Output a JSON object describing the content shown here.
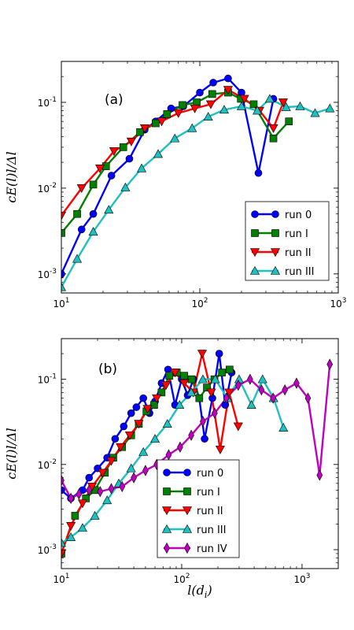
{
  "chart_data": [
    {
      "type": "line",
      "panel_label": "(a)",
      "xscale": "log",
      "yscale": "log",
      "xlim": [
        10,
        1000
      ],
      "ylim": [
        0.0006,
        0.3
      ],
      "x_ticks": [
        {
          "v": 10,
          "base": "10",
          "exp": "1"
        },
        {
          "v": 100,
          "base": "10",
          "exp": "2"
        },
        {
          "v": 1000,
          "base": "10",
          "exp": "3"
        }
      ],
      "y_ticks": [
        {
          "v": 0.001,
          "base": "10",
          "exp": "-3"
        },
        {
          "v": 0.01,
          "base": "10",
          "exp": "-2"
        },
        {
          "v": 0.1,
          "base": "10",
          "exp": "-1"
        }
      ],
      "ylabel": "cE(l)l/Δl",
      "xlabel": "",
      "legend_position": "lower-right",
      "series": [
        {
          "name": "run 0",
          "color": "#0000ff",
          "marker": "circle",
          "x": [
            10,
            14,
            17,
            23,
            31,
            40,
            48,
            62,
            76,
            100,
            125,
            160,
            200,
            265,
            340
          ],
          "y": [
            0.001,
            0.0033,
            0.005,
            0.014,
            0.022,
            0.048,
            0.06,
            0.085,
            0.09,
            0.13,
            0.17,
            0.19,
            0.13,
            0.015,
            0.11
          ]
        },
        {
          "name": "run I",
          "color": "#008000",
          "marker": "square",
          "x": [
            10,
            13,
            17,
            21,
            28,
            37,
            48,
            58,
            75,
            95,
            123,
            160,
            198,
            245,
            340,
            440
          ],
          "y": [
            0.003,
            0.005,
            0.011,
            0.018,
            0.03,
            0.045,
            0.057,
            0.073,
            0.093,
            0.1,
            0.125,
            0.13,
            0.11,
            0.095,
            0.038,
            0.06
          ]
        },
        {
          "name": "run II",
          "color": "#ff0000",
          "marker": "triangle-down",
          "x": [
            10,
            14,
            19,
            24,
            32,
            40,
            53,
            70,
            92,
            120,
            160,
            210,
            270,
            340,
            400
          ],
          "y": [
            0.0048,
            0.01,
            0.017,
            0.027,
            0.035,
            0.05,
            0.06,
            0.075,
            0.085,
            0.095,
            0.14,
            0.11,
            0.08,
            0.05,
            0.1
          ]
        },
        {
          "name": "run III",
          "color": "#20c0c0",
          "marker": "triangle-up",
          "x": [
            10,
            13,
            17,
            22,
            29,
            38,
            50,
            66,
            88,
            115,
            150,
            200,
            260,
            320,
            420,
            530,
            680,
            870
          ],
          "y": [
            0.0007,
            0.0015,
            0.0031,
            0.0056,
            0.0102,
            0.017,
            0.025,
            0.038,
            0.05,
            0.068,
            0.082,
            0.09,
            0.08,
            0.11,
            0.088,
            0.09,
            0.075,
            0.085
          ]
        }
      ]
    },
    {
      "type": "line",
      "panel_label": "(b)",
      "xscale": "log",
      "yscale": "log",
      "xlim": [
        10,
        2000
      ],
      "ylim": [
        0.0006,
        0.3
      ],
      "x_ticks": [
        {
          "v": 10,
          "base": "10",
          "exp": "1"
        },
        {
          "v": 100,
          "base": "10",
          "exp": "2"
        },
        {
          "v": 1000,
          "base": "10",
          "exp": "3"
        }
      ],
      "y_ticks": [
        {
          "v": 0.001,
          "base": "10",
          "exp": "-3"
        },
        {
          "v": 0.01,
          "base": "10",
          "exp": "-2"
        },
        {
          "v": 0.1,
          "base": "10",
          "exp": "-1"
        }
      ],
      "ylabel": "cE(l)l/Δl",
      "xlabel": "l(d_i)",
      "legend_position": "lower-center",
      "series": [
        {
          "name": "run 0",
          "color": "#0000ff",
          "marker": "circle",
          "x": [
            10,
            12,
            15,
            17,
            20,
            24,
            28,
            33,
            38,
            42,
            48,
            54,
            60,
            68,
            77,
            88,
            100,
            112,
            125,
            140,
            155,
            180,
            205,
            230,
            260
          ],
          "y": [
            0.005,
            0.004,
            0.005,
            0.007,
            0.009,
            0.012,
            0.02,
            0.028,
            0.04,
            0.047,
            0.06,
            0.04,
            0.055,
            0.09,
            0.13,
            0.05,
            0.1,
            0.065,
            0.1,
            0.06,
            0.02,
            0.06,
            0.2,
            0.05,
            0.12
          ]
        },
        {
          "name": "run I",
          "color": "#008000",
          "marker": "square",
          "x": [
            10,
            13,
            16,
            19,
            23,
            27,
            32,
            38,
            44,
            51,
            59,
            68,
            79,
            91,
            105,
            121,
            140,
            162,
            187,
            216,
            250
          ],
          "y": [
            0.0009,
            0.0025,
            0.004,
            0.005,
            0.008,
            0.012,
            0.016,
            0.022,
            0.03,
            0.042,
            0.05,
            0.07,
            0.11,
            0.12,
            0.11,
            0.1,
            0.06,
            0.08,
            0.1,
            0.12,
            0.13
          ]
        },
        {
          "name": "run II",
          "color": "#ff0000",
          "marker": "triangle-down",
          "x": [
            10,
            12,
            15,
            18,
            22,
            26,
            31,
            37,
            44,
            52,
            62,
            74,
            88,
            105,
            125,
            148,
            176,
            209,
            248,
            295
          ],
          "y": [
            0.0009,
            0.0019,
            0.0035,
            0.0055,
            0.008,
            0.011,
            0.016,
            0.022,
            0.03,
            0.045,
            0.06,
            0.085,
            0.12,
            0.09,
            0.07,
            0.2,
            0.07,
            0.015,
            0.07,
            0.028
          ]
        },
        {
          "name": "run III",
          "color": "#20c0c0",
          "marker": "triangle-up",
          "x": [
            10,
            12,
            15,
            19,
            24,
            30,
            38,
            48,
            60,
            76,
            96,
            120,
            150,
            190,
            240,
            300,
            380,
            470,
            580,
            700
          ],
          "y": [
            0.0012,
            0.0014,
            0.0018,
            0.0025,
            0.0038,
            0.006,
            0.009,
            0.014,
            0.02,
            0.03,
            0.05,
            0.07,
            0.1,
            0.1,
            0.06,
            0.1,
            0.05,
            0.1,
            0.06,
            0.027
          ]
        },
        {
          "name": "run IV",
          "color": "#c000c0",
          "marker": "diamond",
          "x": [
            10,
            12,
            14,
            17,
            21,
            26,
            32,
            40,
            50,
            62,
            78,
            97,
            120,
            150,
            188,
            235,
            295,
            370,
            460,
            575,
            720,
            900,
            1120,
            1400,
            1700
          ],
          "y": [
            0.0065,
            0.004,
            0.0045,
            0.005,
            0.0048,
            0.0052,
            0.0055,
            0.007,
            0.0085,
            0.01,
            0.013,
            0.016,
            0.022,
            0.032,
            0.04,
            0.06,
            0.085,
            0.1,
            0.075,
            0.06,
            0.075,
            0.09,
            0.06,
            0.0075,
            0.15
          ]
        }
      ]
    }
  ]
}
